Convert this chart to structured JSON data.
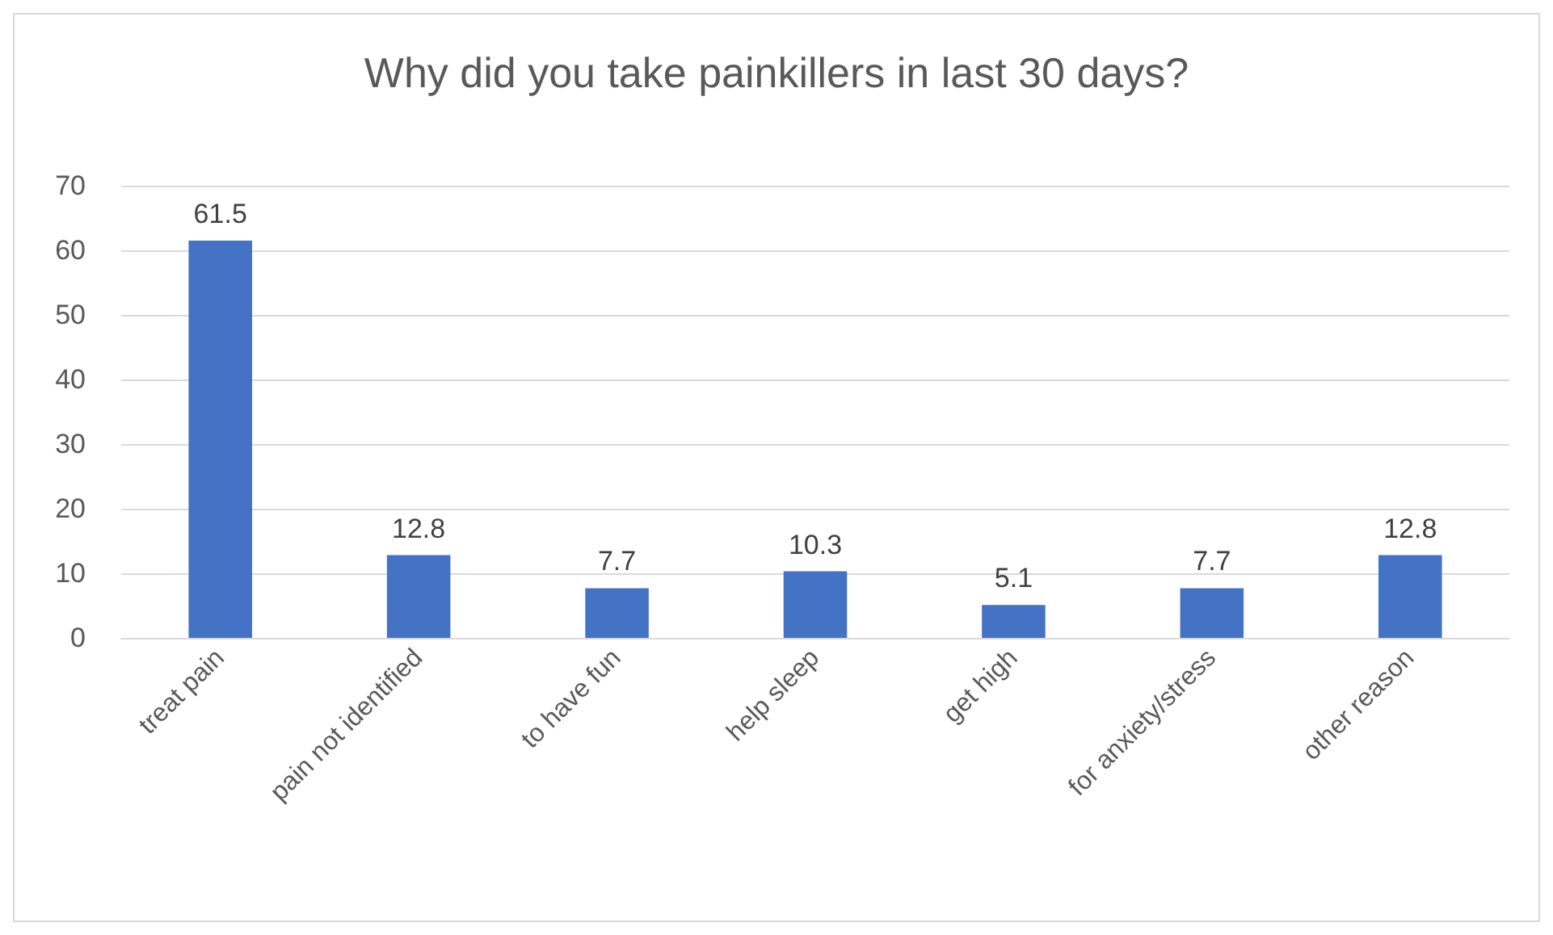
{
  "chart_data": {
    "type": "bar",
    "title": "Why did you take painkillers in last 30 days?",
    "categories": [
      "treat pain",
      "pain not identified",
      "to have fun",
      "help sleep",
      "get high",
      "for anxiety/stress",
      "other reason"
    ],
    "values": [
      61.5,
      12.8,
      7.7,
      10.3,
      5.1,
      7.7,
      12.8
    ],
    "color": "#4472c4",
    "ylim": [
      0,
      70
    ],
    "yticks": [
      0,
      10,
      20,
      30,
      40,
      50,
      60,
      70
    ],
    "grid": "y",
    "data_labels": true
  }
}
